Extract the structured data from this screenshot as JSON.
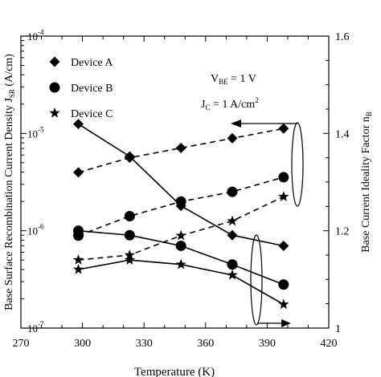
{
  "chart_data": {
    "type": "line",
    "xlabel": "Temperature (K)",
    "ylabel_left": "Base Surface Recombination Current Density J",
    "ylabel_left_sub": "SR",
    "ylabel_left_unit": " (A/cm)",
    "ylabel_right": "Base Current Ideality Factor n",
    "ylabel_right_sub": "B",
    "x_ticks": [
      "270",
      "300",
      "330",
      "360",
      "390",
      "420"
    ],
    "xlim": [
      270,
      420
    ],
    "y_left_scale": "log",
    "y_left_lim": [
      1e-07,
      0.0001
    ],
    "y_left_ticks": [
      {
        "base": "10",
        "exp": "-7",
        "value": 1e-07
      },
      {
        "base": "10",
        "exp": "-6",
        "value": 1e-06
      },
      {
        "base": "10",
        "exp": "-5",
        "value": 1e-05
      },
      {
        "base": "10",
        "exp": "-4",
        "value": 0.0001
      }
    ],
    "y_right_lim": [
      1.0,
      1.6
    ],
    "y_right_ticks": [
      "1",
      "1.2",
      "1.4",
      "1.6"
    ],
    "annotations": {
      "vbe": {
        "main": "V",
        "sub": "BE",
        "rest": " = 1 V"
      },
      "jc": {
        "main": "J",
        "sub": "C",
        "rest": " = 1 A/cm",
        "sup": "2"
      }
    },
    "legend": [
      {
        "name": "Device A",
        "marker": "diamond"
      },
      {
        "name": "Device B",
        "marker": "circle"
      },
      {
        "name": "Device C",
        "marker": "star"
      }
    ],
    "series": [
      {
        "name": "Device A",
        "axis": "left",
        "style": "solid",
        "marker": "diamond",
        "x": [
          298,
          323,
          348,
          373,
          398
        ],
        "y": [
          1.25e-05,
          5.8e-06,
          1.8e-06,
          9e-07,
          7e-07
        ]
      },
      {
        "name": "Device B",
        "axis": "left",
        "style": "solid",
        "marker": "circle",
        "x": [
          298,
          323,
          348,
          373,
          398
        ],
        "y": [
          1e-06,
          9e-07,
          7e-07,
          4.5e-07,
          2.8e-07
        ]
      },
      {
        "name": "Device C",
        "axis": "left",
        "style": "solid",
        "marker": "star",
        "x": [
          298,
          323,
          348,
          373,
          398
        ],
        "y": [
          4e-07,
          5e-07,
          4.5e-07,
          3.5e-07,
          1.75e-07
        ]
      },
      {
        "name": "Device A",
        "axis": "right",
        "style": "dashed",
        "marker": "diamond",
        "x": [
          298,
          323,
          348,
          373,
          398
        ],
        "y": [
          1.32,
          1.35,
          1.37,
          1.39,
          1.41
        ]
      },
      {
        "name": "Device B",
        "axis": "right",
        "style": "dashed",
        "marker": "circle",
        "x": [
          298,
          323,
          348,
          373,
          398
        ],
        "y": [
          1.19,
          1.23,
          1.26,
          1.28,
          1.31
        ]
      },
      {
        "name": "Device C",
        "axis": "right",
        "style": "dashed",
        "marker": "star",
        "x": [
          298,
          323,
          348,
          373,
          398
        ],
        "y": [
          1.14,
          1.15,
          1.19,
          1.22,
          1.27
        ]
      }
    ]
  }
}
